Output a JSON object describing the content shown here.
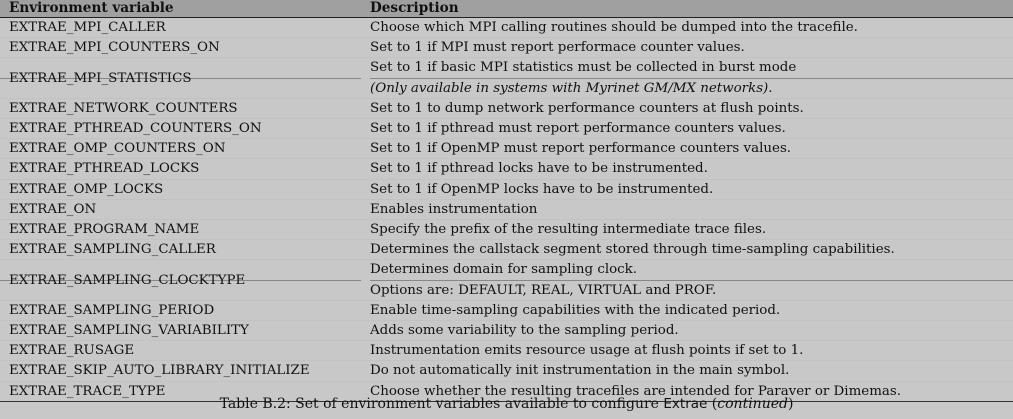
{
  "table": {
    "headers": [
      "Environment variable",
      "Description"
    ],
    "rows": [
      {
        "var": "EXTRAE_MPI_CALLER",
        "desc": [
          "Choose which MPI calling routines should be dumped into the tracefile."
        ]
      },
      {
        "var": "EXTRAE_MPI_COUNTERS_ON",
        "desc": [
          "Set to 1 if MPI must report performace counter values."
        ]
      },
      {
        "var": "EXTRAE_MPI_STATISTICS",
        "desc": [
          "Set to 1 if basic MPI statistics must be collected in burst mode",
          "(Only available in systems with Myrinet GM/MX networks)."
        ]
      },
      {
        "var": "EXTRAE_NETWORK_COUNTERS",
        "desc": [
          "Set to 1 to dump network performance counters at flush points."
        ]
      },
      {
        "var": "EXTRAE_PTHREAD_COUNTERS_ON",
        "desc": [
          "Set to 1 if pthread must report performance counters values."
        ]
      },
      {
        "var": "EXTRAE_OMP_COUNTERS_ON",
        "desc": [
          "Set to 1 if OpenMP must report performance counters values."
        ]
      },
      {
        "var": "EXTRAE_PTHREAD_LOCKS",
        "desc": [
          "Set to 1 if pthread locks have to be instrumented."
        ]
      },
      {
        "var": "EXTRAE_OMP_LOCKS",
        "desc": [
          "Set to 1 if OpenMP locks have to be instrumented."
        ]
      },
      {
        "var": "EXTRAE_ON",
        "desc": [
          "Enables instrumentation"
        ]
      },
      {
        "var": "EXTRAE_PROGRAM_NAME",
        "desc": [
          "Specify the prefix of the resulting intermediate trace files."
        ]
      },
      {
        "var": "EXTRAE_SAMPLING_CALLER",
        "desc": [
          "Determines the callstack segment stored through time-sampling capabilities."
        ]
      },
      {
        "var": "EXTRAE_SAMPLING_CLOCKTYPE",
        "desc": [
          "Determines domain for sampling clock.",
          "Options are: DEFAULT, REAL, VIRTUAL and PROF."
        ]
      },
      {
        "var": "EXTRAE_SAMPLING_PERIOD",
        "desc": [
          "Enable time-sampling capabilities with the indicated period."
        ]
      },
      {
        "var": "EXTRAE_SAMPLING_VARIABILITY",
        "desc": [
          "Adds some variability to the sampling period."
        ]
      },
      {
        "var": "EXTRAE_RUSAGE",
        "desc": [
          "Instrumentation emits resource usage at flush points if set to 1."
        ]
      },
      {
        "var": "EXTRAE_SKIP_AUTO_LIBRARY_INITIALIZE",
        "desc": [
          "Do not automatically init instrumentation in the main symbol."
        ]
      },
      {
        "var": "EXTRAE_TRACE_TYPE",
        "desc": [
          "Choose whether the resulting tracefiles are intended for Paraver or Dimemas."
        ]
      }
    ]
  },
  "caption": {
    "prefix": "Table B.2: Set of environment variables available to configure",
    "product": "Extrae",
    "suffix": "(continued)"
  }
}
